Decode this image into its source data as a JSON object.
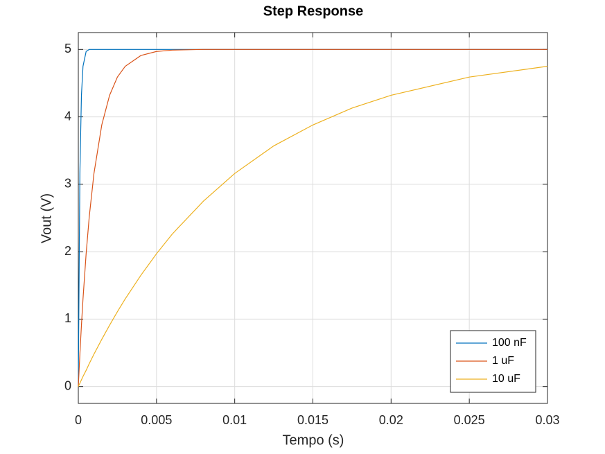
{
  "chart_data": {
    "type": "line",
    "title": "Step Response",
    "x_label": "Tempo (s)",
    "y_label": "Vout (V)",
    "x": [
      0,
      0.0001,
      0.0002,
      0.0003,
      0.0005,
      0.0007,
      0.001,
      0.0015,
      0.002,
      0.0025,
      0.003,
      0.004,
      0.005,
      0.006,
      0.008,
      0.01,
      0.0125,
      0.015,
      0.0175,
      0.02,
      0.025,
      0.03
    ],
    "series": [
      {
        "name": "100 nF",
        "color": "#0072bd",
        "values": [
          0,
          3.16,
          4.32,
          4.75,
          4.97,
          5,
          5,
          5,
          5,
          5,
          5,
          5,
          5,
          5,
          5,
          5,
          5,
          5,
          5,
          5,
          5,
          5
        ]
      },
      {
        "name": "1 uF",
        "color": "#d95319",
        "values": [
          0,
          0.48,
          0.91,
          1.3,
          1.97,
          2.52,
          3.16,
          3.88,
          4.32,
          4.59,
          4.75,
          4.91,
          4.97,
          4.99,
          5,
          5,
          5,
          5,
          5,
          5,
          5,
          5
        ]
      },
      {
        "name": "10 uF",
        "color": "#edb120",
        "values": [
          0,
          0.05,
          0.1,
          0.15,
          0.24,
          0.34,
          0.48,
          0.7,
          0.91,
          1.11,
          1.3,
          1.65,
          1.97,
          2.26,
          2.75,
          3.16,
          3.57,
          3.88,
          4.13,
          4.32,
          4.59,
          4.75
        ]
      }
    ],
    "xlim": [
      0,
      0.03
    ],
    "xticks": [
      0,
      0.005,
      0.01,
      0.015,
      0.02,
      0.025,
      0.03
    ],
    "ylim": [
      -0.25,
      5.25
    ],
    "yticks": [
      0,
      1,
      2,
      3,
      4,
      5
    ],
    "grid": true,
    "legend": "southeast"
  }
}
